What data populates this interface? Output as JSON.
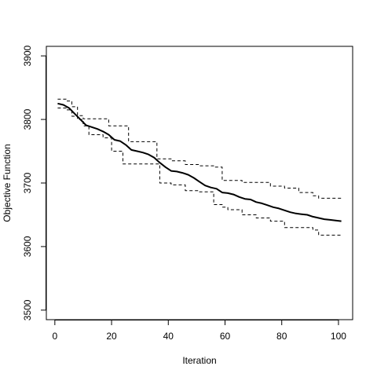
{
  "chart_data": {
    "type": "line",
    "title": "",
    "xlabel": "Iteration",
    "ylabel": "Objective Function",
    "xlim": [
      -3,
      105
    ],
    "ylim": [
      3485,
      3915
    ],
    "xticks": [
      0,
      20,
      40,
      60,
      80,
      100
    ],
    "yticks": [
      3500,
      3600,
      3700,
      3800,
      3900
    ],
    "grid": false,
    "legend": "none",
    "series": [
      {
        "style": "solid",
        "color": "#000000",
        "x": [
          1,
          3,
          5,
          7,
          9,
          11,
          13,
          15,
          17,
          19,
          21,
          23,
          25,
          27,
          29,
          31,
          33,
          35,
          37,
          39,
          41,
          43,
          45,
          47,
          49,
          51,
          53,
          55,
          57,
          59,
          61,
          63,
          65,
          67,
          69,
          71,
          73,
          75,
          77,
          79,
          81,
          83,
          85,
          87,
          89,
          91,
          93,
          95,
          97,
          99,
          101
        ],
        "y": [
          3825,
          3823,
          3818,
          3809,
          3800,
          3791,
          3788,
          3785,
          3781,
          3776,
          3768,
          3766,
          3760,
          3752,
          3750,
          3748,
          3745,
          3740,
          3732,
          3725,
          3719,
          3718,
          3716,
          3713,
          3708,
          3702,
          3696,
          3693,
          3691,
          3685,
          3684,
          3682,
          3678,
          3675,
          3674,
          3670,
          3668,
          3665,
          3662,
          3660,
          3657,
          3654,
          3652,
          3651,
          3650,
          3647,
          3645,
          3643,
          3642,
          3641,
          3640
        ]
      },
      {
        "style": "dashed",
        "color": "#000000",
        "x": [
          1,
          4,
          4,
          6,
          6,
          8,
          8,
          10,
          10,
          19,
          19,
          26,
          26,
          36,
          36,
          41,
          41,
          46,
          46,
          51,
          51,
          56,
          56,
          59,
          59,
          66,
          66,
          76,
          76,
          81,
          81,
          86,
          86,
          91,
          91,
          93,
          93,
          101
        ],
        "y": [
          3832,
          3832,
          3829,
          3829,
          3820,
          3820,
          3806,
          3806,
          3801,
          3801,
          3790,
          3790,
          3765,
          3765,
          3738,
          3738,
          3735,
          3735,
          3729,
          3729,
          3727,
          3727,
          3725,
          3725,
          3704,
          3704,
          3701,
          3701,
          3695,
          3695,
          3692,
          3692,
          3685,
          3685,
          3680,
          3680,
          3676,
          3676
        ]
      },
      {
        "style": "dashed",
        "color": "#000000",
        "x": [
          1,
          4,
          4,
          6,
          6,
          8,
          8,
          10,
          10,
          12,
          12,
          17,
          17,
          20,
          20,
          24,
          24,
          37,
          37,
          41,
          41,
          46,
          46,
          51,
          51,
          56,
          56,
          59,
          59,
          61,
          61,
          66,
          66,
          71,
          71,
          76,
          76,
          81,
          81,
          91,
          91,
          93,
          93,
          101
        ],
        "y": [
          3818,
          3818,
          3815,
          3815,
          3805,
          3805,
          3800,
          3800,
          3790,
          3790,
          3776,
          3776,
          3771,
          3771,
          3750,
          3750,
          3730,
          3730,
          3700,
          3700,
          3697,
          3697,
          3688,
          3688,
          3686,
          3686,
          3666,
          3666,
          3662,
          3662,
          3658,
          3658,
          3650,
          3650,
          3645,
          3645,
          3640,
          3640,
          3630,
          3630,
          3626,
          3626,
          3618,
          3618
        ]
      }
    ]
  }
}
